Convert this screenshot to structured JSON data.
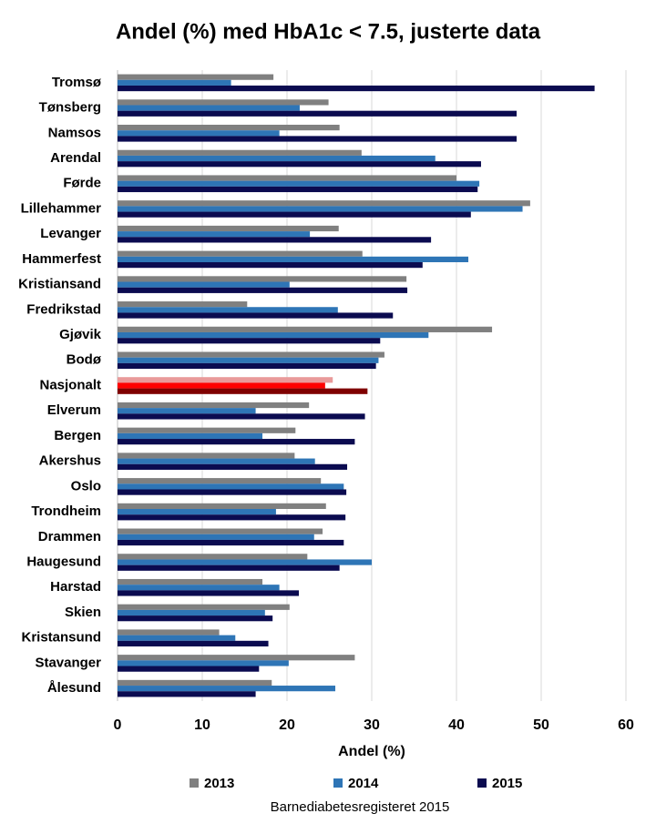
{
  "chart_data": {
    "type": "hbar",
    "title": "Andel (%) med HbA1c < 7.5, justerte data",
    "x_label": "Andel (%)",
    "source": "Barnediabetesregisteret 2015",
    "categories": [
      "Tromsø",
      "Tønsberg",
      "Namsos",
      "Arendal",
      "Førde",
      "Lillehammer",
      "Levanger",
      "Hammerfest",
      "Kristiansand",
      "Fredrikstad",
      "Gjøvik",
      "Bodø",
      "Nasjonalt",
      "Elverum",
      "Bergen",
      "Akershus",
      "Oslo",
      "Trondheim",
      "Drammen",
      "Haugesund",
      "Harstad",
      "Skien",
      "Kristansund",
      "Stavanger",
      "Ålesund"
    ],
    "series": [
      {
        "name": "2013",
        "color": "#808080",
        "highlight_color": "#e99a9a",
        "values": [
          18.4,
          24.9,
          26.2,
          28.8,
          40.0,
          48.7,
          26.1,
          28.9,
          34.1,
          15.3,
          44.2,
          31.5,
          25.4,
          22.6,
          21.0,
          20.9,
          24.0,
          24.6,
          24.2,
          22.4,
          17.1,
          20.3,
          12.0,
          28.0,
          18.2
        ]
      },
      {
        "name": "2014",
        "color": "#2e75b6",
        "highlight_color": "#ff0000",
        "values": [
          13.4,
          21.5,
          19.1,
          37.5,
          42.7,
          47.8,
          22.7,
          41.4,
          20.3,
          26.0,
          36.7,
          30.8,
          24.5,
          16.3,
          17.1,
          23.3,
          26.7,
          18.7,
          23.2,
          30.0,
          19.1,
          17.4,
          13.9,
          20.2,
          25.7
        ]
      },
      {
        "name": "2015",
        "color": "#0b0b50",
        "highlight_color": "#7f0000",
        "values": [
          56.3,
          47.1,
          47.1,
          42.9,
          42.5,
          41.7,
          37.0,
          36.0,
          34.2,
          32.5,
          31.0,
          30.5,
          29.5,
          29.2,
          28.0,
          27.1,
          27.0,
          26.9,
          26.7,
          26.2,
          21.4,
          18.3,
          17.8,
          16.7,
          16.3
        ]
      }
    ],
    "highlight_index": 12,
    "xlim": [
      0,
      60
    ],
    "xticks": [
      0,
      10,
      20,
      30,
      40,
      50,
      60
    ],
    "grid": true,
    "legend": "bottom"
  }
}
